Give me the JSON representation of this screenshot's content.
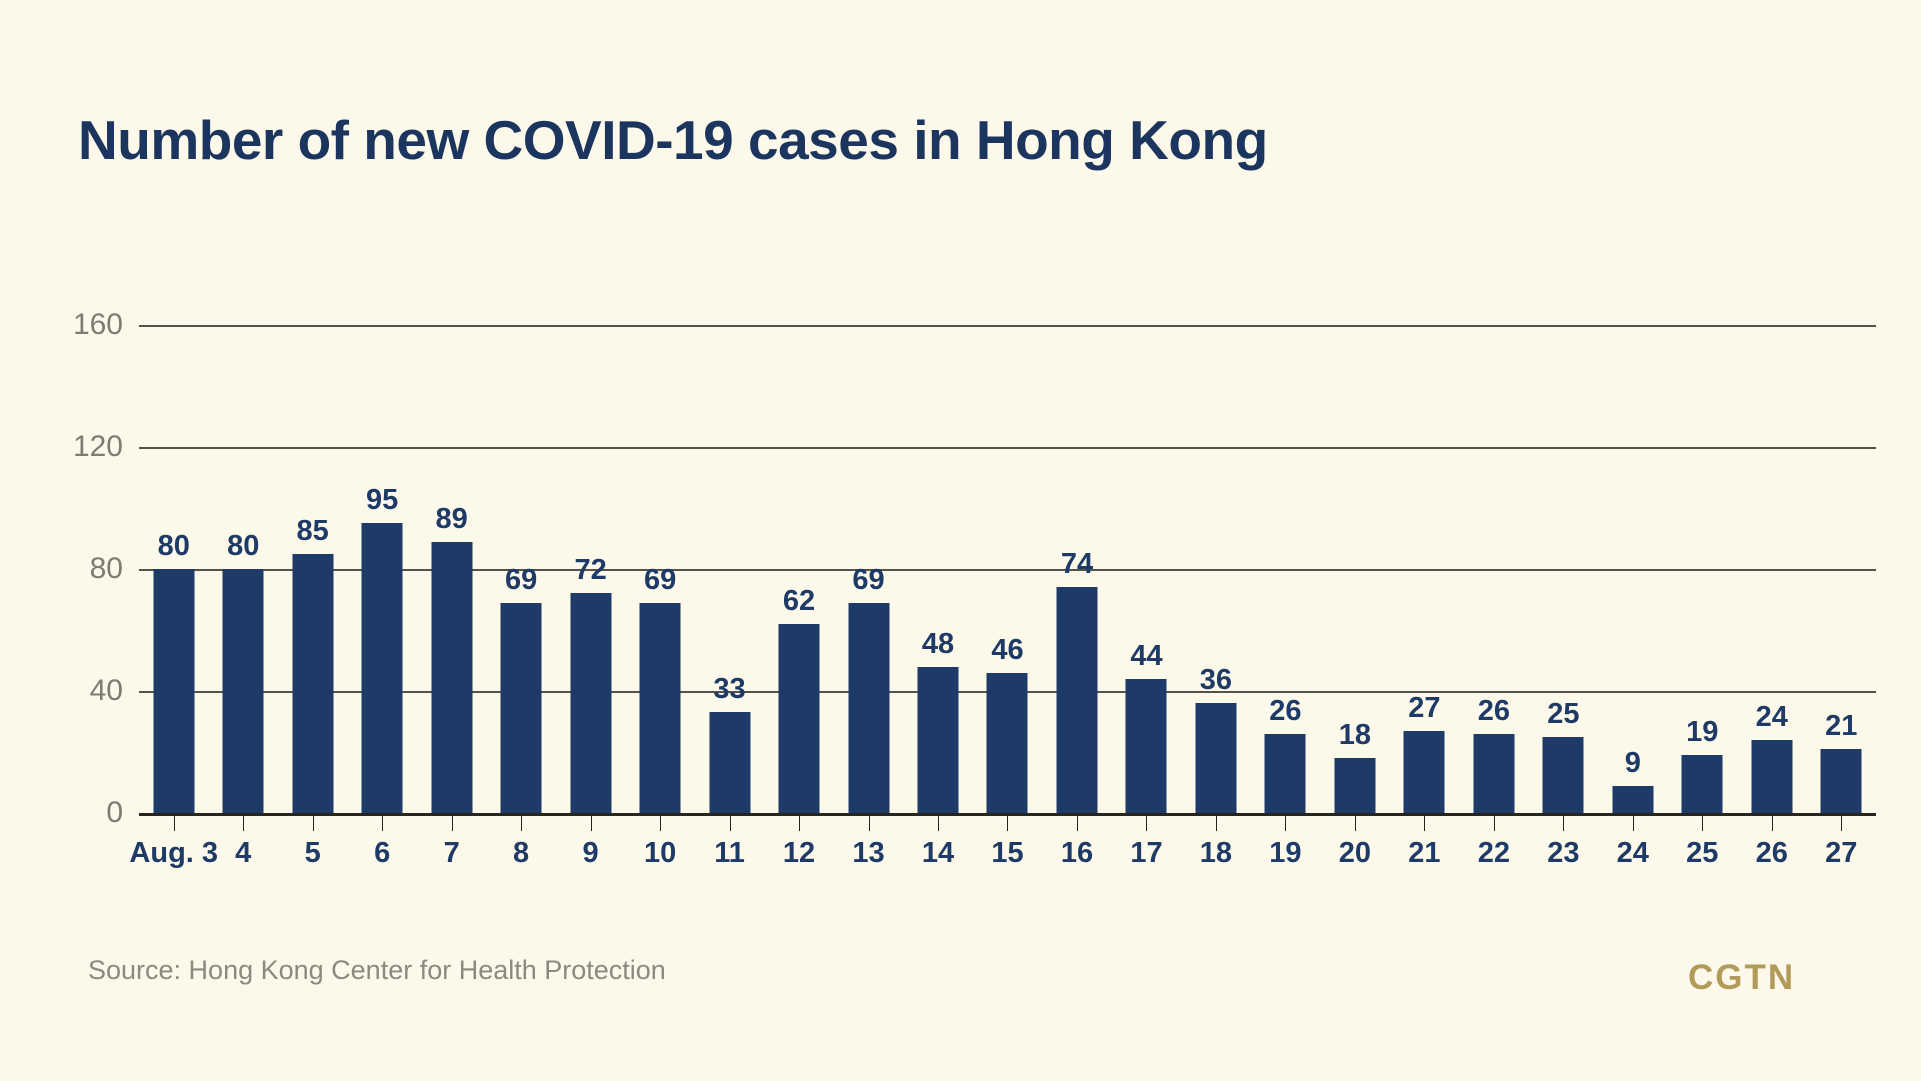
{
  "title": "Number of new COVID-19 cases in Hong Kong",
  "source": "Source: Hong Kong Center for Health Protection",
  "brand": "CGTN",
  "colors": {
    "bg": "#fcf8ea",
    "bar": "#1e3a66",
    "title": "#1b355f",
    "grid": "#55524a",
    "axis": "#26251f",
    "ylabel": "#7e7b71",
    "source": "#8c897f",
    "brand": "#b29a58"
  },
  "chart_data": {
    "type": "bar",
    "title": "Number of new COVID-19 cases in Hong Kong",
    "categories": [
      "Aug. 3",
      "4",
      "5",
      "6",
      "7",
      "8",
      "9",
      "10",
      "11",
      "12",
      "13",
      "14",
      "15",
      "16",
      "17",
      "18",
      "19",
      "20",
      "21",
      "22",
      "23",
      "24",
      "25",
      "26",
      "27"
    ],
    "values": [
      80,
      80,
      85,
      95,
      89,
      69,
      72,
      69,
      33,
      62,
      69,
      48,
      46,
      74,
      44,
      36,
      26,
      18,
      27,
      26,
      25,
      9,
      19,
      24,
      21
    ],
    "xlabel": "",
    "ylabel": "",
    "ylim": [
      0,
      160
    ],
    "yticks": [
      0,
      40,
      80,
      120,
      160
    ],
    "grid": true,
    "legend": false,
    "bar_color": "#1e3a66"
  }
}
